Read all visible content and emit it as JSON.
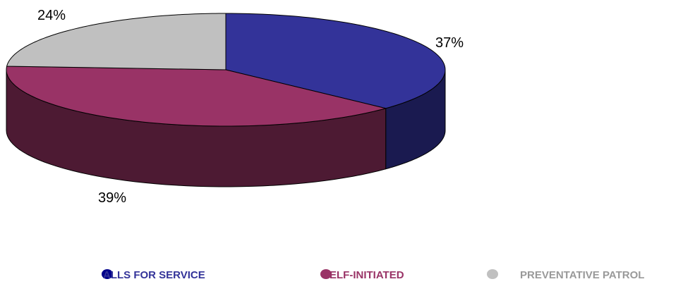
{
  "chart_data": {
    "type": "pie",
    "style": "3d",
    "title": "",
    "categories": [
      "CALLS FOR SERVICE",
      "SELF-INITIATED",
      "PREVENTATIVE PATROL"
    ],
    "values": [
      37,
      39,
      24
    ],
    "unit": "%",
    "data_labels": [
      "37%",
      "39%",
      "24%"
    ],
    "colors": [
      "#333399",
      "#993366",
      "#c0c0c0"
    ],
    "side_colors": [
      "#1a1a50",
      "#4d1a33",
      "#808080"
    ],
    "legend": {
      "position": "bottom",
      "items": [
        {
          "label": "CALLS FOR SERVICE",
          "display": "ALLS FOR SERVICE",
          "color": "#333399",
          "marker": "#00008b",
          "text_color": "#333399"
        },
        {
          "label": "SELF-INITIATED",
          "display": "SELF-INITIATED",
          "color": "#993366",
          "marker": "#993366",
          "text_color": "#993366"
        },
        {
          "label": "PREVENTATIVE PATROL",
          "display": "PREVENTATIVE PATROL",
          "color": "#c0c0c0",
          "marker": "#c0c0c0",
          "text_color": "#999999"
        }
      ]
    }
  }
}
